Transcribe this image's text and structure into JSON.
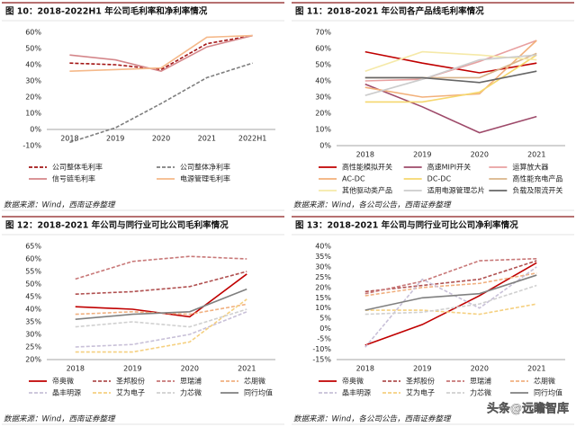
{
  "chart_data": [
    {
      "type": "line",
      "title": "图 10：2018-2022H1 年公司毛利率和净利率情况",
      "source": "数据来源：Wind，西南证券整理",
      "categories": [
        "2018",
        "2019",
        "2020",
        "2021",
        "2022H1"
      ],
      "ylim": [
        -10,
        60
      ],
      "yticks": [
        {
          "value": -10,
          "label": "-10%"
        },
        {
          "value": 0,
          "label": "0%"
        },
        {
          "value": 10,
          "label": "10%"
        },
        {
          "value": 20,
          "label": "20%"
        },
        {
          "value": 30,
          "label": "30%"
        },
        {
          "value": 40,
          "label": "40%"
        },
        {
          "value": 50,
          "label": "50%"
        },
        {
          "value": 60,
          "label": "60%"
        }
      ],
      "x_axis_at_zero": true,
      "series": [
        {
          "name": "公司整体毛利率",
          "color": "#a31515",
          "dashed": true,
          "values": [
            41,
            40,
            37,
            53,
            58
          ]
        },
        {
          "name": "公司整体净利率",
          "color": "#7f7f7f",
          "dashed": true,
          "values": [
            -8,
            1,
            16,
            32,
            41
          ]
        },
        {
          "name": "信号链毛利率",
          "color": "#d4868a",
          "dashed": false,
          "values": [
            46,
            43,
            36,
            51,
            58
          ]
        },
        {
          "name": "电源管理毛利率",
          "color": "#f5b98a",
          "dashed": false,
          "values": [
            36,
            37,
            38,
            57,
            58
          ]
        }
      ]
    },
    {
      "type": "line",
      "title": "图 11：2018-2021 年公司各产品线毛利率情况",
      "source": "数据来源：Wind，各公司公告，西南证券整理",
      "categories": [
        "2018",
        "2019",
        "2020",
        "2021"
      ],
      "ylim": [
        0,
        70
      ],
      "yticks": [
        {
          "value": 0,
          "label": "0%"
        },
        {
          "value": 10,
          "label": "10%"
        },
        {
          "value": 20,
          "label": "20%"
        },
        {
          "value": 30,
          "label": "30%"
        },
        {
          "value": 40,
          "label": "40%"
        },
        {
          "value": 50,
          "label": "50%"
        },
        {
          "value": 60,
          "label": "60%"
        },
        {
          "value": 70,
          "label": "70%"
        }
      ],
      "x_axis_at_zero": false,
      "series": [
        {
          "name": "高性能模拟开关",
          "color": "#c00000",
          "dashed": false,
          "values": [
            58,
            51,
            45,
            51
          ]
        },
        {
          "name": "高速MIPI开关",
          "color": "#9e4a6a",
          "dashed": false,
          "values": [
            38,
            24,
            8,
            18
          ]
        },
        {
          "name": "运算放大器",
          "color": "#e8a0a0",
          "dashed": false,
          "values": [
            40,
            41,
            52,
            65
          ]
        },
        {
          "name": "AC-DC",
          "color": "#f2b07a",
          "dashed": false,
          "values": [
            36,
            30,
            32,
            65
          ]
        },
        {
          "name": "DC-DC",
          "color": "#f5d76e",
          "dashed": false,
          "values": [
            27,
            27,
            33,
            56
          ]
        },
        {
          "name": "高性能充电产品",
          "color": "#d9b48a",
          "dashed": false,
          "values": [
            42,
            42,
            42,
            57
          ]
        },
        {
          "name": "其他驱动类产品",
          "color": "#f5e9a8",
          "dashed": false,
          "values": [
            46,
            58,
            56,
            53
          ]
        },
        {
          "name": "适用电源管理芯片",
          "color": "#cccccc",
          "dashed": false,
          "values": [
            31,
            41,
            53,
            56
          ]
        },
        {
          "name": "负载及限流开关",
          "color": "#666666",
          "dashed": false,
          "values": [
            42,
            42,
            39,
            46
          ]
        }
      ]
    },
    {
      "type": "line",
      "title": "图 12：2018-2021 年公司与同行业可比公司毛利率情况",
      "source": "数据来源：Wind，西南证券整理",
      "categories": [
        "2018",
        "2019",
        "2020",
        "2021"
      ],
      "ylim": [
        20,
        65
      ],
      "yticks": [
        {
          "value": 20,
          "label": "20%"
        },
        {
          "value": 25,
          "label": "25%"
        },
        {
          "value": 30,
          "label": "30%"
        },
        {
          "value": 35,
          "label": "35%"
        },
        {
          "value": 40,
          "label": "40%"
        },
        {
          "value": 45,
          "label": "45%"
        },
        {
          "value": 50,
          "label": "50%"
        },
        {
          "value": 55,
          "label": "55%"
        },
        {
          "value": 60,
          "label": "60%"
        },
        {
          "value": 65,
          "label": "65%"
        }
      ],
      "x_axis_at_zero": false,
      "series": [
        {
          "name": "帝奥微",
          "color": "#c00000",
          "dashed": false,
          "values": [
            41,
            40,
            37,
            54
          ]
        },
        {
          "name": "圣邦股份",
          "color": "#b05050",
          "dashed": true,
          "values": [
            46,
            47,
            49,
            55
          ]
        },
        {
          "name": "思瑞浦",
          "color": "#c87878",
          "dashed": true,
          "values": [
            52,
            59,
            61,
            60
          ]
        },
        {
          "name": "芯朋微",
          "color": "#f0b080",
          "dashed": true,
          "values": [
            38,
            39,
            38,
            42
          ]
        },
        {
          "name": "晶丰明源",
          "color": "#c8c0d8",
          "dashed": true,
          "values": [
            25,
            26,
            30,
            39
          ]
        },
        {
          "name": "艾为电子",
          "color": "#f5d080",
          "dashed": true,
          "values": [
            23,
            23,
            27,
            44
          ]
        },
        {
          "name": "力芯微",
          "color": "#d0d0d0",
          "dashed": true,
          "values": [
            33,
            35,
            33,
            40
          ]
        },
        {
          "name": "同行均值",
          "color": "#808080",
          "dashed": false,
          "values": [
            36,
            38,
            39,
            48
          ]
        }
      ]
    },
    {
      "type": "line",
      "title": "图 13：2018-2021 年公司与同行业可比公司净利率情况",
      "source": "数据来源：Wind，各公司公告，西南证券整理",
      "categories": [
        "2018",
        "2019",
        "2020",
        "2021"
      ],
      "ylim": [
        -15,
        40
      ],
      "yticks": [
        {
          "value": -15,
          "label": "-15%"
        },
        {
          "value": -10,
          "label": "-10%"
        },
        {
          "value": -5,
          "label": "-5%"
        },
        {
          "value": 0,
          "label": "0%"
        },
        {
          "value": 5,
          "label": "5%"
        },
        {
          "value": 10,
          "label": "10%"
        },
        {
          "value": 15,
          "label": "15%"
        },
        {
          "value": 20,
          "label": "20%"
        },
        {
          "value": 25,
          "label": "25%"
        },
        {
          "value": 30,
          "label": "30%"
        },
        {
          "value": 35,
          "label": "35%"
        },
        {
          "value": 40,
          "label": "40%"
        }
      ],
      "x_axis_at_zero": false,
      "series": [
        {
          "name": "帝奥微",
          "color": "#c00000",
          "dashed": false,
          "values": [
            -8,
            2,
            16,
            32
          ]
        },
        {
          "name": "圣邦股份",
          "color": "#b05050",
          "dashed": true,
          "values": [
            18,
            21,
            24,
            33
          ]
        },
        {
          "name": "思瑞浦",
          "color": "#c87878",
          "dashed": true,
          "values": [
            17,
            23,
            33,
            34
          ]
        },
        {
          "name": "芯朋微",
          "color": "#f0b080",
          "dashed": true,
          "values": [
            16,
            20,
            22,
            27
          ]
        },
        {
          "name": "晶丰明源",
          "color": "#c8c0d8",
          "dashed": true,
          "values": [
            -9,
            24,
            10,
            30
          ]
        },
        {
          "name": "艾为电子",
          "color": "#f5d080",
          "dashed": true,
          "values": [
            9,
            9,
            7,
            12
          ]
        },
        {
          "name": "力芯微",
          "color": "#d0d0d0",
          "dashed": true,
          "values": [
            7,
            8,
            12,
            21
          ]
        },
        {
          "name": "同行均值",
          "color": "#808080",
          "dashed": false,
          "values": [
            9,
            15,
            17,
            26
          ]
        }
      ]
    }
  ],
  "watermark": "头条@远瞻智库"
}
